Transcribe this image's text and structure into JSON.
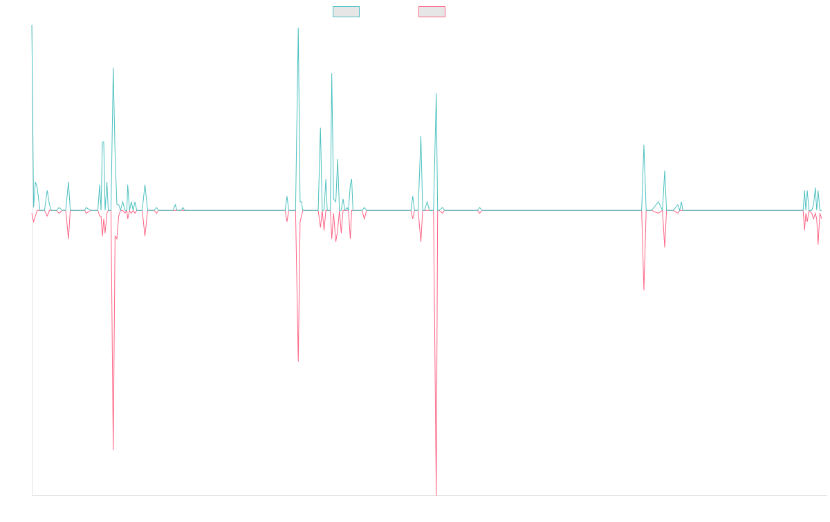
{
  "chart_data": {
    "type": "line",
    "title": "",
    "xlabel": "",
    "ylabel": "",
    "ylim": [
      -1.0,
      0.65
    ],
    "grid": false,
    "legend_position": "top-center",
    "series": [
      {
        "color": "#4bc0c0",
        "points": [
          [
            0,
            0.65
          ],
          [
            0.4,
            0.01
          ],
          [
            0.8,
            0.1
          ],
          [
            1.2,
            0.08
          ],
          [
            1.8,
            0.0
          ],
          [
            2.8,
            0.0
          ],
          [
            3.4,
            0.07
          ],
          [
            3.9,
            0.02
          ],
          [
            4.3,
            0.0
          ],
          [
            5.5,
            0.0
          ],
          [
            6.0,
            0.01
          ],
          [
            6.8,
            0.0
          ],
          [
            7.5,
            0.0
          ],
          [
            8.1,
            0.1
          ],
          [
            8.5,
            0.0
          ],
          [
            9.3,
            0.0
          ],
          [
            10.0,
            0.0
          ],
          [
            11.0,
            0.0
          ],
          [
            11.7,
            0.0
          ],
          [
            12.0,
            0.01
          ],
          [
            13.0,
            0.0
          ],
          [
            14.0,
            0.0
          ],
          [
            14.6,
            0.0
          ],
          [
            15.0,
            0.09
          ],
          [
            15.3,
            0.0
          ],
          [
            15.6,
            0.24
          ],
          [
            15.9,
            0.24
          ],
          [
            16.2,
            0.0
          ],
          [
            16.6,
            0.1
          ],
          [
            16.9,
            0.0
          ],
          [
            17.5,
            0.0
          ],
          [
            18.0,
            0.5
          ],
          [
            18.4,
            0.2
          ],
          [
            18.8,
            0.02
          ],
          [
            19.2,
            0.02
          ],
          [
            19.6,
            0.0
          ],
          [
            20.1,
            0.03
          ],
          [
            20.6,
            0.0
          ],
          [
            21.0,
            0.0
          ],
          [
            21.2,
            0.09
          ],
          [
            21.6,
            0.0
          ],
          [
            22.0,
            0.03
          ],
          [
            22.4,
            0.0
          ],
          [
            22.8,
            0.03
          ],
          [
            23.2,
            0.0
          ],
          [
            24.4,
            0.0
          ],
          [
            25.0,
            0.09
          ],
          [
            25.6,
            0.0
          ],
          [
            27.0,
            0.0
          ],
          [
            27.6,
            0.01
          ],
          [
            28.0,
            0.0
          ],
          [
            28.7,
            0.0
          ],
          [
            29.2,
            0.0
          ],
          [
            29.7,
            0.0
          ],
          [
            30.3,
            0.0
          ],
          [
            31.2,
            0.0
          ],
          [
            31.7,
            0.02
          ],
          [
            32.1,
            0.0
          ],
          [
            33.0,
            0.0
          ],
          [
            33.4,
            0.01
          ],
          [
            33.8,
            0.0
          ],
          [
            34.8,
            0.0
          ],
          [
            35.0,
            0.0
          ],
          [
            40.0,
            0.0
          ],
          [
            45.0,
            0.0
          ],
          [
            50.0,
            0.0
          ],
          [
            56.0,
            0.0
          ],
          [
            56.4,
            0.05
          ],
          [
            56.8,
            0.0
          ],
          [
            58.3,
            0.0
          ],
          [
            58.9,
            0.64
          ],
          [
            59.3,
            0.03
          ],
          [
            59.6,
            0.03
          ],
          [
            59.9,
            0.0
          ],
          [
            63.3,
            0.0
          ],
          [
            63.8,
            0.29
          ],
          [
            64.2,
            0.0
          ],
          [
            64.6,
            0.0
          ],
          [
            65.0,
            0.11
          ],
          [
            65.3,
            0.0
          ],
          [
            66.0,
            0.0
          ],
          [
            66.3,
            0.48
          ],
          [
            66.7,
            0.04
          ],
          [
            67.2,
            0.03
          ],
          [
            67.6,
            0.18
          ],
          [
            68.0,
            0.0
          ],
          [
            68.4,
            0.0
          ],
          [
            68.8,
            0.04
          ],
          [
            69.2,
            0.0
          ],
          [
            69.7,
            0.01
          ],
          [
            70.0,
            0.0
          ],
          [
            70.4,
            0.09
          ],
          [
            70.7,
            0.11
          ],
          [
            71.0,
            0.0
          ],
          [
            71.6,
            0.0
          ],
          [
            72.2,
            0.0
          ],
          [
            73.0,
            0.0
          ],
          [
            73.5,
            0.01
          ],
          [
            74.0,
            0.0
          ],
          [
            74.6,
            0.0
          ],
          [
            75.0,
            0.0
          ],
          [
            80.0,
            0.0
          ],
          [
            83.8,
            0.0
          ],
          [
            84.2,
            0.05
          ],
          [
            84.6,
            0.0
          ],
          [
            85.4,
            0.0
          ],
          [
            86.0,
            0.26
          ],
          [
            86.4,
            0.0
          ],
          [
            86.8,
            0.0
          ],
          [
            87.4,
            0.03
          ],
          [
            87.9,
            0.0
          ],
          [
            88.2,
            0.0
          ],
          [
            88.8,
            0.0
          ],
          [
            89.4,
            0.41
          ],
          [
            89.7,
            0.0
          ],
          [
            90.0,
            0.0
          ],
          [
            90.8,
            0.01
          ],
          [
            91.2,
            0.0
          ],
          [
            95.0,
            0.0
          ],
          [
            98.5,
            0.0
          ],
          [
            99.0,
            0.01
          ],
          [
            99.5,
            0.0
          ],
          [
            105.0,
            0.0
          ],
          [
            110.0,
            0.0
          ],
          [
            115.0,
            0.0
          ],
          [
            120.0,
            0.0
          ],
          [
            125.0,
            0.0
          ],
          [
            128.4,
            0.0
          ],
          [
            128.9,
            0.0
          ],
          [
            129.3,
            0.0
          ],
          [
            134.8,
            0.0
          ],
          [
            135.3,
            0.23
          ],
          [
            135.8,
            0.0
          ],
          [
            137.0,
            0.0
          ],
          [
            138.5,
            0.03
          ],
          [
            139.4,
            0.0
          ],
          [
            139.9,
            0.14
          ],
          [
            140.3,
            0.0
          ],
          [
            141.0,
            0.0
          ],
          [
            141.8,
            0.0
          ],
          [
            142.8,
            0.02
          ],
          [
            143.2,
            0.0
          ],
          [
            143.6,
            0.03
          ],
          [
            143.9,
            0.0
          ],
          [
            144.4,
            0.0
          ],
          [
            145.0,
            0.0
          ],
          [
            150.0,
            0.0
          ],
          [
            155.0,
            0.0
          ],
          [
            160.0,
            0.0
          ],
          [
            165.0,
            0.0
          ],
          [
            170.5,
            0.0
          ],
          [
            170.8,
            0.07
          ],
          [
            171.1,
            0.0
          ],
          [
            171.4,
            0.07
          ],
          [
            171.8,
            0.0
          ],
          [
            172.4,
            0.0
          ],
          [
            172.8,
            0.02
          ],
          [
            173.2,
            0.08
          ],
          [
            173.5,
            0.0
          ],
          [
            173.8,
            0.07
          ],
          [
            174.2,
            0.0
          ],
          [
            174.6,
            0.0
          ]
        ]
      },
      {
        "color": "#ff6384",
        "points": [
          [
            0,
            -0.01
          ],
          [
            0.4,
            -0.04
          ],
          [
            0.8,
            -0.02
          ],
          [
            1.2,
            0.0
          ],
          [
            1.8,
            0.0
          ],
          [
            2.8,
            0.0
          ],
          [
            3.4,
            -0.02
          ],
          [
            3.9,
            0.0
          ],
          [
            4.3,
            0.0
          ],
          [
            5.5,
            0.0
          ],
          [
            6.0,
            -0.01
          ],
          [
            6.8,
            0.0
          ],
          [
            7.5,
            0.0
          ],
          [
            8.1,
            -0.1
          ],
          [
            8.5,
            0.0
          ],
          [
            9.3,
            0.0
          ],
          [
            10.0,
            0.0
          ],
          [
            11.0,
            0.0
          ],
          [
            11.7,
            0.0
          ],
          [
            12.0,
            -0.01
          ],
          [
            13.0,
            0.0
          ],
          [
            14.0,
            0.0
          ],
          [
            14.6,
            0.0
          ],
          [
            15.0,
            -0.02
          ],
          [
            15.3,
            -0.02
          ],
          [
            15.6,
            -0.09
          ],
          [
            15.9,
            -0.03
          ],
          [
            16.2,
            -0.08
          ],
          [
            16.6,
            -0.01
          ],
          [
            16.9,
            0.0
          ],
          [
            17.5,
            0.0
          ],
          [
            18.0,
            -0.84
          ],
          [
            18.4,
            -0.09
          ],
          [
            18.8,
            -0.1
          ],
          [
            19.2,
            -0.02
          ],
          [
            19.6,
            0.0
          ],
          [
            20.1,
            0.0
          ],
          [
            20.6,
            -0.01
          ],
          [
            21.0,
            0.0
          ],
          [
            21.2,
            -0.03
          ],
          [
            21.6,
            0.0
          ],
          [
            22.0,
            -0.01
          ],
          [
            22.4,
            0.0
          ],
          [
            22.8,
            -0.01
          ],
          [
            23.2,
            0.0
          ],
          [
            24.4,
            0.0
          ],
          [
            25.0,
            -0.09
          ],
          [
            25.6,
            0.0
          ],
          [
            27.0,
            0.0
          ],
          [
            27.6,
            -0.01
          ],
          [
            28.0,
            0.0
          ],
          [
            28.7,
            0.0
          ],
          [
            29.2,
            0.0
          ],
          [
            29.7,
            0.0
          ],
          [
            30.3,
            0.0
          ],
          [
            31.2,
            0.0
          ],
          [
            31.7,
            0.0
          ],
          [
            32.1,
            0.0
          ],
          [
            33.0,
            0.0
          ],
          [
            33.4,
            0.0
          ],
          [
            33.8,
            0.0
          ],
          [
            34.8,
            0.0
          ],
          [
            35.0,
            0.0
          ],
          [
            40.0,
            0.0
          ],
          [
            45.0,
            0.0
          ],
          [
            50.0,
            0.0
          ],
          [
            56.0,
            0.0
          ],
          [
            56.4,
            -0.04
          ],
          [
            56.8,
            0.0
          ],
          [
            58.3,
            0.0
          ],
          [
            58.9,
            -0.53
          ],
          [
            59.3,
            -0.04
          ],
          [
            59.6,
            -0.02
          ],
          [
            59.9,
            0.0
          ],
          [
            63.3,
            0.0
          ],
          [
            63.8,
            -0.06
          ],
          [
            64.2,
            0.0
          ],
          [
            64.6,
            -0.07
          ],
          [
            65.0,
            0.0
          ],
          [
            65.3,
            0.0
          ],
          [
            66.0,
            0.0
          ],
          [
            66.3,
            -0.1
          ],
          [
            66.7,
            -0.01
          ],
          [
            67.2,
            -0.11
          ],
          [
            67.6,
            -0.07
          ],
          [
            68.0,
            0.0
          ],
          [
            68.4,
            -0.08
          ],
          [
            68.8,
            0.0
          ],
          [
            69.2,
            0.0
          ],
          [
            69.7,
            0.0
          ],
          [
            70.0,
            0.0
          ],
          [
            70.4,
            -0.1
          ],
          [
            70.7,
            0.0
          ],
          [
            71.0,
            0.0
          ],
          [
            71.6,
            0.0
          ],
          [
            72.2,
            0.0
          ],
          [
            73.0,
            0.0
          ],
          [
            73.5,
            -0.03
          ],
          [
            74.0,
            0.0
          ],
          [
            74.6,
            0.0
          ],
          [
            75.0,
            0.0
          ],
          [
            80.0,
            0.0
          ],
          [
            83.8,
            0.0
          ],
          [
            84.2,
            -0.03
          ],
          [
            84.6,
            0.0
          ],
          [
            85.4,
            0.0
          ],
          [
            86.0,
            -0.11
          ],
          [
            86.4,
            0.0
          ],
          [
            86.8,
            0.0
          ],
          [
            87.4,
            0.0
          ],
          [
            87.9,
            0.0
          ],
          [
            88.2,
            0.0
          ],
          [
            88.8,
            0.0
          ],
          [
            89.4,
            -1.0
          ],
          [
            89.7,
            0.0
          ],
          [
            90.0,
            0.0
          ],
          [
            90.8,
            -0.01
          ],
          [
            91.2,
            0.0
          ],
          [
            95.0,
            0.0
          ],
          [
            98.5,
            0.0
          ],
          [
            99.0,
            -0.01
          ],
          [
            99.5,
            0.0
          ],
          [
            105.0,
            0.0
          ],
          [
            110.0,
            0.0
          ],
          [
            115.0,
            0.0
          ],
          [
            120.0,
            0.0
          ],
          [
            125.0,
            0.0
          ],
          [
            128.4,
            0.0
          ],
          [
            128.9,
            0.0
          ],
          [
            129.3,
            0.0
          ],
          [
            134.8,
            0.0
          ],
          [
            135.3,
            -0.28
          ],
          [
            135.8,
            0.0
          ],
          [
            137.0,
            0.0
          ],
          [
            138.5,
            -0.01
          ],
          [
            139.4,
            0.0
          ],
          [
            139.9,
            -0.13
          ],
          [
            140.3,
            0.0
          ],
          [
            141.0,
            0.0
          ],
          [
            141.8,
            0.0
          ],
          [
            142.8,
            -0.01
          ],
          [
            143.2,
            0.0
          ],
          [
            143.6,
            0.0
          ],
          [
            143.9,
            0.0
          ],
          [
            144.4,
            0.0
          ],
          [
            145.0,
            0.0
          ],
          [
            150.0,
            0.0
          ],
          [
            155.0,
            0.0
          ],
          [
            160.0,
            0.0
          ],
          [
            165.0,
            0.0
          ],
          [
            170.5,
            0.0
          ],
          [
            170.8,
            -0.07
          ],
          [
            171.1,
            -0.01
          ],
          [
            171.4,
            -0.04
          ],
          [
            171.8,
            0.0
          ],
          [
            172.4,
            -0.01
          ],
          [
            172.8,
            -0.03
          ],
          [
            173.2,
            -0.01
          ],
          [
            173.5,
            -0.03
          ],
          [
            173.8,
            -0.12
          ],
          [
            174.2,
            -0.01
          ],
          [
            174.6,
            -0.03
          ]
        ]
      }
    ]
  }
}
